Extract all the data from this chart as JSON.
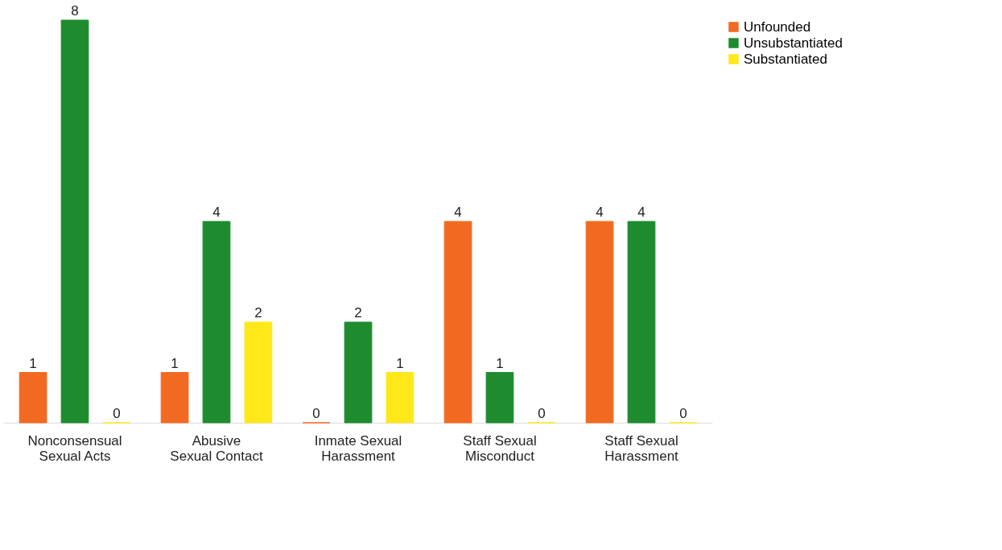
{
  "chart_data": {
    "type": "bar",
    "categories": [
      "Nonconsensual\nSexual Acts",
      "Abusive\nSexual Contact",
      "Inmate Sexual\nHarassment",
      "Staff Sexual\nMisconduct",
      "Staff Sexual\nHarassment"
    ],
    "series": [
      {
        "name": "Unfounded",
        "color": "#f26a22",
        "values": [
          1,
          1,
          0,
          4,
          4
        ]
      },
      {
        "name": "Unsubstantiated",
        "color": "#1e8c2e",
        "values": [
          8,
          4,
          2,
          1,
          4
        ]
      },
      {
        "name": "Substantiated",
        "color": "#ffe81a",
        "values": [
          0,
          2,
          1,
          0,
          0
        ]
      }
    ],
    "data_labels": true,
    "legend": "right",
    "grid": false
  }
}
